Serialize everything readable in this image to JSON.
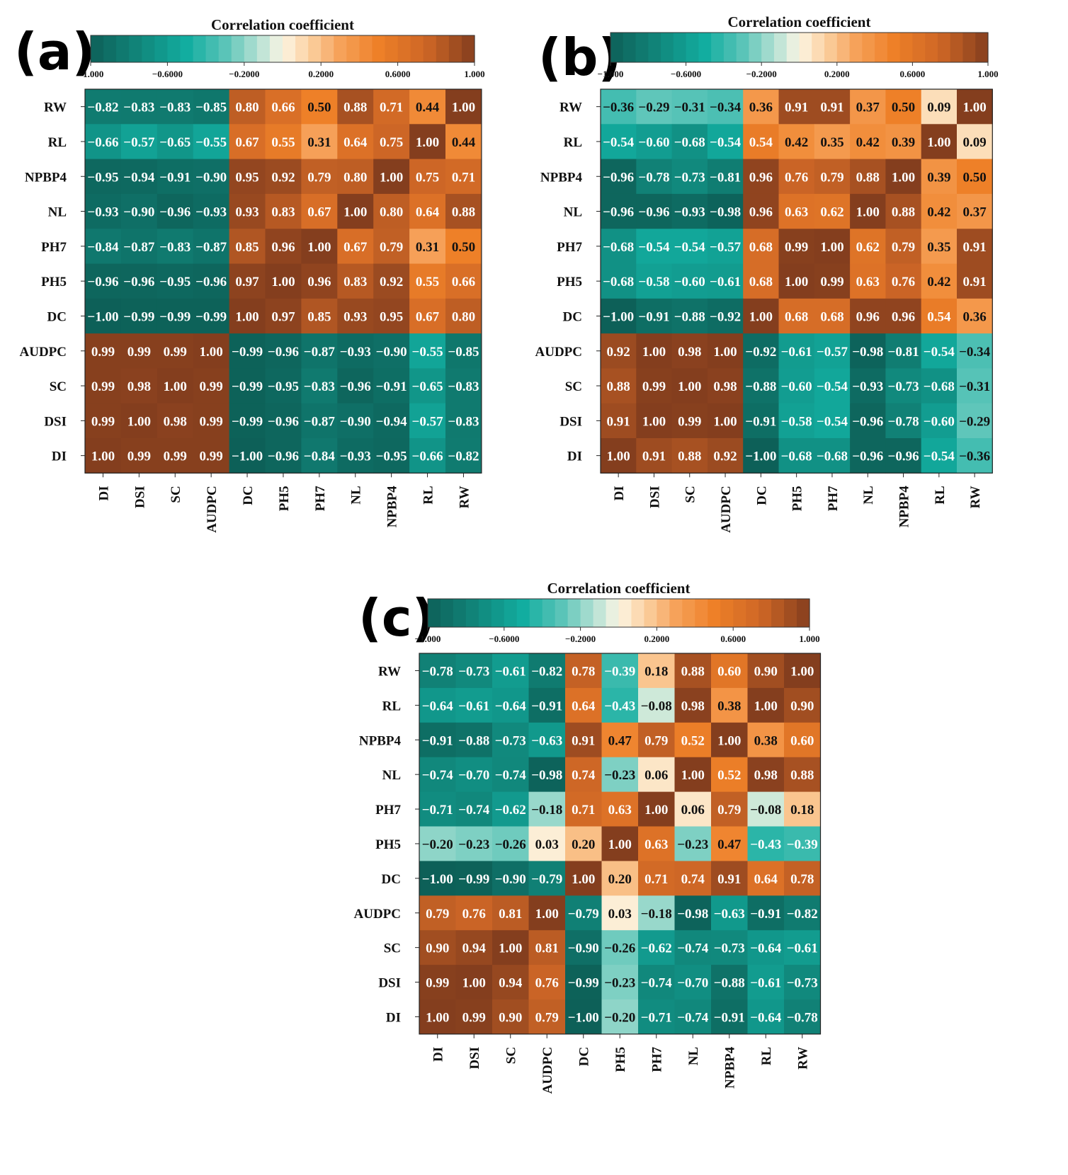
{
  "chart_data": [
    {
      "type": "heatmap",
      "panel_label": "(a)",
      "title": "Correlation coefficient",
      "colorbar_ticks": [
        "−1.000",
        "−0.6000",
        "−0.2000",
        "0.2000",
        "0.6000",
        "1.000"
      ],
      "colorbar_range": [
        -1,
        1
      ],
      "x_labels": [
        "DI",
        "DSI",
        "SC",
        "AUDPC",
        "DC",
        "PH5",
        "PH7",
        "NL",
        "NPBP4",
        "RL",
        "RW"
      ],
      "y_labels": [
        "RW",
        "RL",
        "NPBP4",
        "NL",
        "PH7",
        "PH5",
        "DC",
        "AUDPC",
        "SC",
        "DSI",
        "DI"
      ],
      "values": [
        [
          -0.82,
          -0.83,
          -0.83,
          -0.85,
          0.8,
          0.66,
          0.5,
          0.88,
          0.71,
          0.44,
          1.0
        ],
        [
          -0.66,
          -0.57,
          -0.65,
          -0.55,
          0.67,
          0.55,
          0.31,
          0.64,
          0.75,
          1.0,
          0.44
        ],
        [
          -0.95,
          -0.94,
          -0.91,
          -0.9,
          0.95,
          0.92,
          0.79,
          0.8,
          1.0,
          0.75,
          0.71
        ],
        [
          -0.93,
          -0.9,
          -0.96,
          -0.93,
          0.93,
          0.83,
          0.67,
          1.0,
          0.8,
          0.64,
          0.88
        ],
        [
          -0.84,
          -0.87,
          -0.83,
          -0.87,
          0.85,
          0.96,
          1.0,
          0.67,
          0.79,
          0.31,
          0.5
        ],
        [
          -0.96,
          -0.96,
          -0.95,
          -0.96,
          0.97,
          1.0,
          0.96,
          0.83,
          0.92,
          0.55,
          0.66
        ],
        [
          -1.0,
          -0.99,
          -0.99,
          -0.99,
          1.0,
          0.97,
          0.85,
          0.93,
          0.95,
          0.67,
          0.8
        ],
        [
          0.99,
          0.99,
          0.99,
          1.0,
          -0.99,
          -0.96,
          -0.87,
          -0.93,
          -0.9,
          -0.55,
          -0.85
        ],
        [
          0.99,
          0.98,
          1.0,
          0.99,
          -0.99,
          -0.95,
          -0.83,
          -0.96,
          -0.91,
          -0.65,
          -0.83
        ],
        [
          0.99,
          1.0,
          0.98,
          0.99,
          -0.99,
          -0.96,
          -0.87,
          -0.9,
          -0.94,
          -0.57,
          -0.83
        ],
        [
          1.0,
          0.99,
          0.99,
          0.99,
          -1.0,
          -0.96,
          -0.84,
          -0.93,
          -0.95,
          -0.66,
          -0.82
        ]
      ]
    },
    {
      "type": "heatmap",
      "panel_label": "(b)",
      "title": "Correlation coefficient",
      "colorbar_ticks": [
        "−1.000",
        "−0.6000",
        "−0.2000",
        "0.2000",
        "0.6000",
        "1.000"
      ],
      "colorbar_range": [
        -1,
        1
      ],
      "x_labels": [
        "DI",
        "DSI",
        "SC",
        "AUDPC",
        "DC",
        "PH5",
        "PH7",
        "NL",
        "NPBP4",
        "RL",
        "RW"
      ],
      "y_labels": [
        "RW",
        "RL",
        "NPBP4",
        "NL",
        "PH7",
        "PH5",
        "DC",
        "AUDPC",
        "SC",
        "DSI",
        "DI"
      ],
      "values": [
        [
          -0.36,
          -0.29,
          -0.31,
          -0.34,
          0.36,
          0.91,
          0.91,
          0.37,
          0.5,
          0.09,
          1.0
        ],
        [
          -0.54,
          -0.6,
          -0.68,
          -0.54,
          0.54,
          0.42,
          0.35,
          0.42,
          0.39,
          1.0,
          0.09
        ],
        [
          -0.96,
          -0.78,
          -0.73,
          -0.81,
          0.96,
          0.76,
          0.79,
          0.88,
          1.0,
          0.39,
          0.5
        ],
        [
          -0.96,
          -0.96,
          -0.93,
          -0.98,
          0.96,
          0.63,
          0.62,
          1.0,
          0.88,
          0.42,
          0.37
        ],
        [
          -0.68,
          -0.54,
          -0.54,
          -0.57,
          0.68,
          0.99,
          1.0,
          0.62,
          0.79,
          0.35,
          0.91
        ],
        [
          -0.68,
          -0.58,
          -0.6,
          -0.61,
          0.68,
          1.0,
          0.99,
          0.63,
          0.76,
          0.42,
          0.91
        ],
        [
          -1.0,
          -0.91,
          -0.88,
          -0.92,
          1.0,
          0.68,
          0.68,
          0.96,
          0.96,
          0.54,
          0.36
        ],
        [
          0.92,
          1.0,
          0.98,
          1.0,
          -0.92,
          -0.61,
          -0.57,
          -0.98,
          -0.81,
          -0.54,
          -0.34
        ],
        [
          0.88,
          0.99,
          1.0,
          0.98,
          -0.88,
          -0.6,
          -0.54,
          -0.93,
          -0.73,
          -0.68,
          -0.31
        ],
        [
          0.91,
          1.0,
          0.99,
          1.0,
          -0.91,
          -0.58,
          -0.54,
          -0.96,
          -0.78,
          -0.6,
          -0.29
        ],
        [
          1.0,
          0.91,
          0.88,
          0.92,
          -1.0,
          -0.68,
          -0.68,
          -0.96,
          -0.96,
          -0.54,
          -0.36
        ]
      ]
    },
    {
      "type": "heatmap",
      "panel_label": "(c)",
      "title": "Correlation coefficient",
      "colorbar_ticks": [
        "−1.000",
        "−0.6000",
        "−0.2000",
        "0.2000",
        "0.6000",
        "1.000"
      ],
      "colorbar_range": [
        -1,
        1
      ],
      "x_labels": [
        "DI",
        "DSI",
        "SC",
        "AUDPC",
        "DC",
        "PH5",
        "PH7",
        "NL",
        "NPBP4",
        "RL",
        "RW"
      ],
      "y_labels": [
        "RW",
        "RL",
        "NPBP4",
        "NL",
        "PH7",
        "PH5",
        "DC",
        "AUDPC",
        "SC",
        "DSI",
        "DI"
      ],
      "values": [
        [
          -0.78,
          -0.73,
          -0.61,
          -0.82,
          0.78,
          -0.39,
          0.18,
          0.88,
          0.6,
          0.9,
          1.0
        ],
        [
          -0.64,
          -0.61,
          -0.64,
          -0.91,
          0.64,
          -0.43,
          -0.08,
          0.98,
          0.38,
          1.0,
          0.9
        ],
        [
          -0.91,
          -0.88,
          -0.73,
          -0.63,
          0.91,
          0.47,
          0.79,
          0.52,
          1.0,
          0.38,
          0.6
        ],
        [
          -0.74,
          -0.7,
          -0.74,
          -0.98,
          0.74,
          -0.23,
          0.06,
          1.0,
          0.52,
          0.98,
          0.88
        ],
        [
          -0.71,
          -0.74,
          -0.62,
          -0.18,
          0.71,
          0.63,
          1.0,
          0.06,
          0.79,
          -0.08,
          0.18
        ],
        [
          -0.2,
          -0.23,
          -0.26,
          0.03,
          0.2,
          1.0,
          0.63,
          -0.23,
          0.47,
          -0.43,
          -0.39
        ],
        [
          -1.0,
          -0.99,
          -0.9,
          -0.79,
          1.0,
          0.2,
          0.71,
          0.74,
          0.91,
          0.64,
          0.78
        ],
        [
          0.79,
          0.76,
          0.81,
          1.0,
          -0.79,
          0.03,
          -0.18,
          -0.98,
          -0.63,
          -0.91,
          -0.82
        ],
        [
          0.9,
          0.94,
          1.0,
          0.81,
          -0.9,
          -0.26,
          -0.62,
          -0.74,
          -0.73,
          -0.64,
          -0.61
        ],
        [
          0.99,
          1.0,
          0.94,
          0.76,
          -0.99,
          -0.23,
          -0.74,
          -0.7,
          -0.88,
          -0.61,
          -0.73
        ],
        [
          1.0,
          0.99,
          0.9,
          0.79,
          -1.0,
          -0.2,
          -0.71,
          -0.74,
          -0.91,
          -0.64,
          -0.78
        ]
      ]
    }
  ]
}
